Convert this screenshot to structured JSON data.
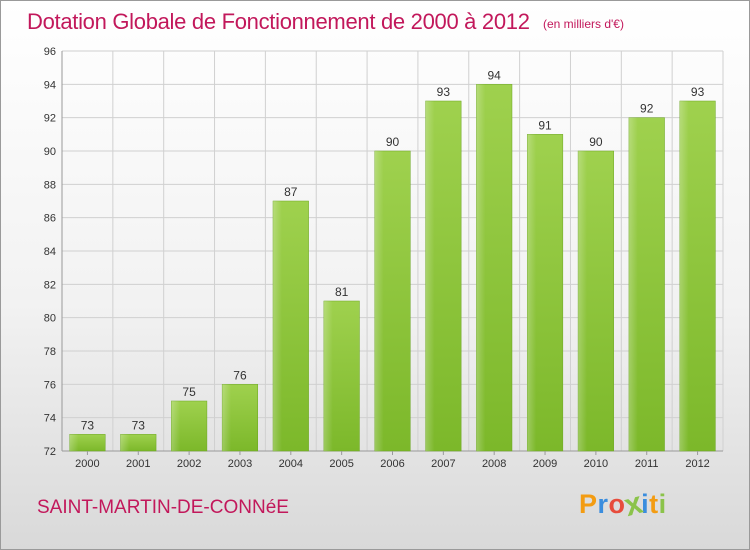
{
  "chart_data": {
    "type": "bar",
    "title": "Dotation Globale de Fonctionnement de 2000 à 2012",
    "subtitle": "(en milliers d'€)",
    "xlabel": "",
    "ylabel": "",
    "categories": [
      "2000",
      "2001",
      "2002",
      "2003",
      "2004",
      "2005",
      "2006",
      "2007",
      "2008",
      "2009",
      "2010",
      "2011",
      "2012"
    ],
    "values": [
      73,
      73,
      75,
      76,
      87,
      81,
      90,
      93,
      94,
      91,
      90,
      92,
      93
    ],
    "ylim": [
      72,
      96
    ],
    "yticks": [
      72,
      74,
      76,
      78,
      80,
      82,
      84,
      86,
      88,
      90,
      92,
      94,
      96
    ],
    "grid": true,
    "legend": "none",
    "bar_color": "#7cb82a",
    "bar_highlight": "#9fd14e"
  },
  "footer": {
    "commune": "SAINT-MARTIN-DE-CONNéE",
    "brand_letters": [
      "P",
      "r",
      "o",
      "x",
      "i",
      "t",
      "i"
    ],
    "brand_colors": [
      "#f39c12",
      "#3a8dde",
      "#e74c3c",
      "#8bc34a",
      "#3a8dde",
      "#f39c12",
      "#8bc34a"
    ]
  },
  "colors": {
    "accent": "#c2185b",
    "grid": "#d0d0d0"
  }
}
